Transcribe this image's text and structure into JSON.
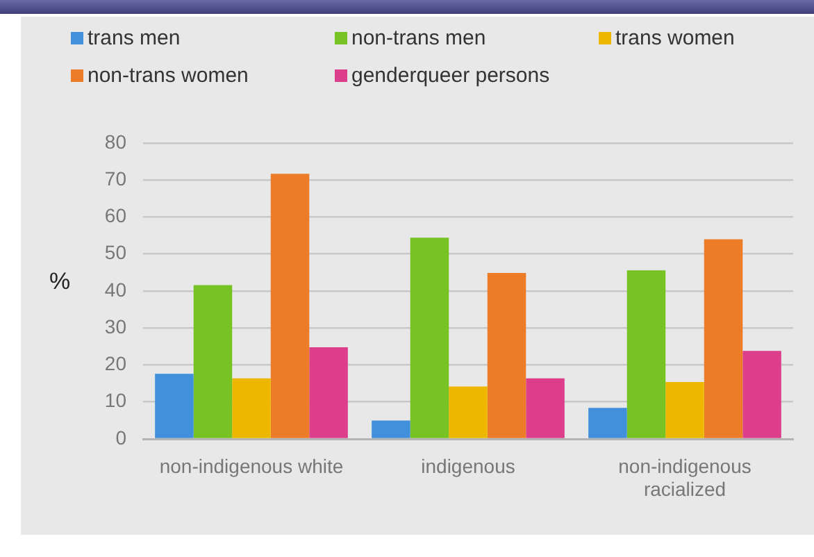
{
  "chart_data": {
    "type": "bar",
    "ylabel": "%",
    "categories": [
      "non-indigenous white",
      "indigenous",
      "non-indigenous racialized"
    ],
    "series": [
      {
        "name": "trans men",
        "color": "#428fdc",
        "values": [
          17.6,
          5.0,
          8.4
        ]
      },
      {
        "name": "non-trans men",
        "color": "#76c323",
        "values": [
          41.6,
          54.4,
          45.6
        ]
      },
      {
        "name": "trans women",
        "color": "#edb700",
        "values": [
          16.4,
          14.2,
          15.4
        ]
      },
      {
        "name": "non-trans women",
        "color": "#ec7c27",
        "values": [
          71.7,
          44.9,
          54.0
        ]
      },
      {
        "name": "genderqueer persons",
        "color": "#dc3e8b",
        "values": [
          24.8,
          16.4,
          23.8
        ]
      }
    ],
    "ylim": [
      0,
      80
    ],
    "yticks": [
      0,
      10,
      20,
      30,
      40,
      50,
      60,
      70,
      80
    ],
    "grid": "y",
    "legend": "top"
  }
}
